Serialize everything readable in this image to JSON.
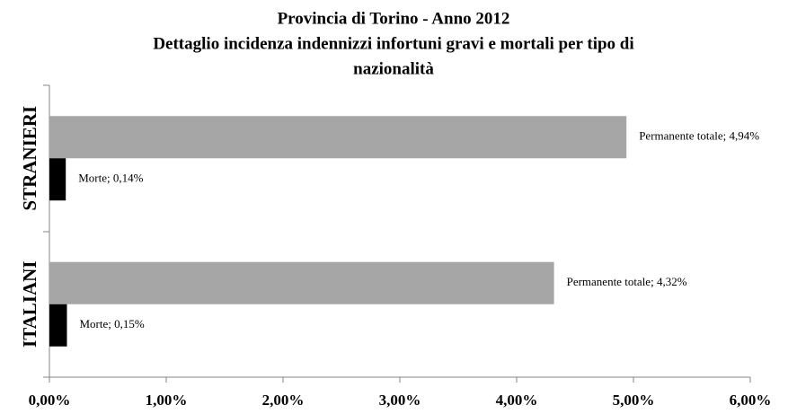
{
  "chart_data": {
    "type": "hbar",
    "title": [
      "Provincia di Torino - Anno 2012",
      "Dettaglio incidenza indennizzi  infortuni gravi e mortali per tipo di",
      "nazionalità"
    ],
    "categories": [
      "STRANIERI",
      "ITALIANI"
    ],
    "series": [
      {
        "color": "#a6a6a6",
        "values": [
          4.94,
          4.32
        ],
        "value_labels": [
          "Permanente totale; 4,94%",
          "Permanente totale; 4,32%"
        ]
      },
      {
        "color": "#000000",
        "values": [
          0.14,
          0.15
        ],
        "value_labels": [
          "Morte; 0,14%",
          "Morte; 0,15%"
        ]
      }
    ],
    "xlim": [
      0,
      6
    ],
    "xticks": [
      {
        "value": 0,
        "label": "0,00%"
      },
      {
        "value": 1,
        "label": "1,00%"
      },
      {
        "value": 2,
        "label": "2,00%"
      },
      {
        "value": 3,
        "label": "3,00%"
      },
      {
        "value": 4,
        "label": "4,00%"
      },
      {
        "value": 5,
        "label": "5,00%"
      },
      {
        "value": 6,
        "label": "6,00%"
      }
    ],
    "grid": false
  }
}
